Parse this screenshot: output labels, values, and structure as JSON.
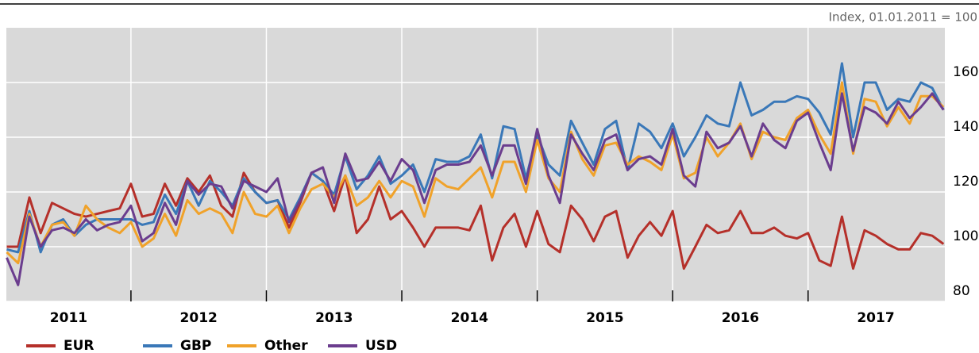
{
  "chart_data": {
    "type": "line",
    "subtitle": "Index, 01.01.2011 = 100",
    "x": [
      2011.083,
      2011.167,
      2011.25,
      2011.333,
      2011.417,
      2011.5,
      2011.583,
      2011.667,
      2011.75,
      2011.833,
      2011.917,
      2012,
      2012.083,
      2012.167,
      2012.25,
      2012.333,
      2012.417,
      2012.5,
      2012.583,
      2012.667,
      2012.75,
      2012.833,
      2012.917,
      2013,
      2013.083,
      2013.167,
      2013.25,
      2013.333,
      2013.417,
      2013.5,
      2013.583,
      2013.667,
      2013.75,
      2013.833,
      2013.917,
      2014,
      2014.083,
      2014.167,
      2014.25,
      2014.333,
      2014.417,
      2014.5,
      2014.583,
      2014.667,
      2014.75,
      2014.833,
      2014.917,
      2015,
      2015.083,
      2015.167,
      2015.25,
      2015.333,
      2015.417,
      2015.5,
      2015.583,
      2015.667,
      2015.75,
      2015.833,
      2015.917,
      2016,
      2016.083,
      2016.167,
      2016.25,
      2016.333,
      2016.417,
      2016.5,
      2016.583,
      2016.667,
      2016.75,
      2016.833,
      2016.917,
      2017,
      2017.083,
      2017.167,
      2017.25,
      2017.333,
      2017.417,
      2017.5,
      2017.583,
      2017.667,
      2017.75,
      2017.833,
      2017.917,
      2018
    ],
    "series": [
      {
        "name": "EUR",
        "color": "#b5302a",
        "values": [
          100,
          100,
          118,
          105,
          116,
          114,
          112,
          111,
          112,
          113,
          114,
          123,
          111,
          112,
          123,
          115,
          125,
          120,
          126,
          115,
          111,
          127,
          120,
          116,
          117,
          107,
          116,
          127,
          124,
          113,
          126,
          105,
          110,
          122,
          110,
          113,
          107,
          100,
          107,
          107,
          107,
          106,
          115,
          95,
          107,
          112,
          100,
          113,
          101,
          98,
          115,
          110,
          102,
          111,
          113,
          96,
          104,
          109,
          104,
          113,
          92,
          100,
          108,
          105,
          106,
          113,
          105,
          105,
          107,
          104,
          103,
          105,
          95,
          93,
          111,
          92,
          106,
          104,
          101,
          99,
          99,
          105,
          104,
          101
        ]
      },
      {
        "name": "GBP",
        "color": "#3a78b8",
        "values": [
          99,
          98,
          113,
          98,
          108,
          110,
          104,
          108,
          110,
          110,
          110,
          110,
          108,
          109,
          119,
          112,
          124,
          115,
          124,
          120,
          115,
          125,
          120,
          116,
          117,
          110,
          118,
          127,
          124,
          119,
          133,
          121,
          126,
          133,
          123,
          126,
          130,
          120,
          132,
          131,
          131,
          133,
          141,
          125,
          144,
          143,
          125,
          141,
          130,
          126,
          146,
          138,
          130,
          143,
          146,
          128,
          145,
          142,
          136,
          145,
          133,
          140,
          148,
          145,
          144,
          160,
          148,
          150,
          153,
          153,
          155,
          154,
          149,
          141,
          167,
          140,
          160,
          160,
          150,
          154,
          153,
          160,
          158,
          150
        ]
      },
      {
        "name": "Other",
        "color": "#f0a22a",
        "values": [
          98,
          94,
          112,
          100,
          108,
          109,
          104,
          115,
          110,
          107,
          105,
          109,
          100,
          103,
          112,
          104,
          117,
          112,
          114,
          112,
          105,
          120,
          112,
          111,
          115,
          105,
          114,
          121,
          123,
          118,
          126,
          115,
          118,
          124,
          118,
          124,
          122,
          111,
          125,
          122,
          121,
          125,
          129,
          118,
          131,
          131,
          120,
          139,
          125,
          120,
          142,
          132,
          126,
          137,
          138,
          130,
          133,
          131,
          128,
          141,
          125,
          127,
          140,
          133,
          138,
          145,
          132,
          142,
          140,
          139,
          147,
          150,
          141,
          134,
          160,
          134,
          154,
          153,
          144,
          151,
          145,
          155,
          155,
          151
        ]
      },
      {
        "name": "USD",
        "color": "#6b3d8e",
        "values": [
          96,
          86,
          111,
          100,
          106,
          107,
          105,
          110,
          106,
          108,
          109,
          115,
          102,
          105,
          116,
          108,
          124,
          119,
          123,
          122,
          114,
          124,
          122,
          120,
          125,
          109,
          117,
          127,
          129,
          116,
          134,
          124,
          125,
          131,
          124,
          132,
          128,
          116,
          128,
          130,
          130,
          131,
          137,
          126,
          137,
          137,
          123,
          143,
          126,
          116,
          141,
          134,
          128,
          139,
          141,
          128,
          132,
          133,
          130,
          143,
          126,
          122,
          142,
          136,
          138,
          144,
          133,
          145,
          139,
          136,
          146,
          149,
          138,
          128,
          156,
          135,
          151,
          149,
          145,
          153,
          147,
          151,
          156,
          150
        ]
      }
    ],
    "xlim": [
      2011.08,
      2018.01
    ],
    "xticks": [
      2012,
      2013,
      2014,
      2015,
      2016,
      2017
    ],
    "x_labels": [
      "2011",
      "2012",
      "2013",
      "2014",
      "2015",
      "2016",
      "2017"
    ],
    "ylim": [
      80,
      180
    ],
    "yticks": [
      80,
      100,
      120,
      140,
      160
    ],
    "grid": true,
    "legend": "bottom"
  }
}
